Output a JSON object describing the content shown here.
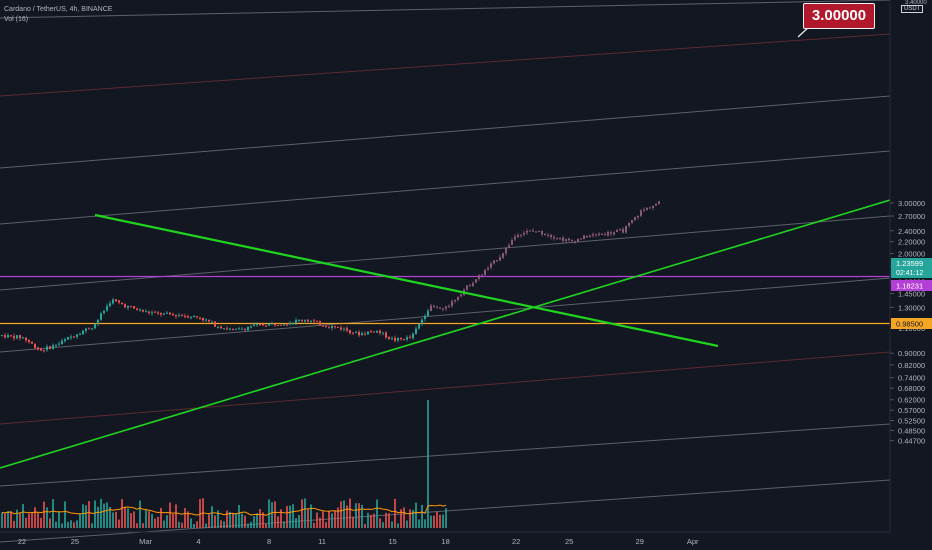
{
  "header": {
    "symbol_line": "Cardano / TetherUS, 4h, BINANCE",
    "indicator": "Vol (16)"
  },
  "callout": {
    "text": "3.00000"
  },
  "colors": {
    "background": "#131722",
    "candle": "#8c5a76",
    "candle_early_up": "#26a69a",
    "candle_early_down": "#ef5350",
    "channel_white": "#5d606b",
    "channel_red": "#5e2a30",
    "trendline": "#1fd51f",
    "magenta": "#b43fd6",
    "orange": "#f5a623",
    "vol_ma": "#ff9800"
  },
  "chart_data": {
    "type": "candlestick",
    "symbol": "Cardano / TetherUS",
    "timeframe": "4h",
    "exchange": "BINANCE",
    "price_axis": {
      "unit": "USDT",
      "scale": "log",
      "ticks": [
        "3.00000",
        "2.70000",
        "2.40000",
        "2.20000",
        "2.00000",
        "1.80000",
        "1.60000",
        "1.45000",
        "1.30000",
        "1.10000",
        "0.90000",
        "0.82000",
        "0.74000",
        "0.68000",
        "0.62000",
        "0.57000",
        "0.52500",
        "0.48500",
        "0.44700"
      ],
      "top_partial_tick": "3.40000"
    },
    "time_axis": {
      "ticks": [
        "22",
        "25",
        "Mar",
        "4",
        "8",
        "11",
        "15",
        "18",
        "22",
        "25",
        "29",
        "Apr"
      ]
    },
    "price_labels": [
      {
        "value": "1.23599",
        "sub": "02:41:12",
        "color": "#26a69a"
      },
      {
        "value": "1.18231",
        "color": "#b43fd6"
      },
      {
        "value": "0.98500",
        "color": "#f5a623"
      }
    ],
    "horizontal_levels": [
      {
        "value": 1.18231,
        "color": "#b43fd6"
      },
      {
        "value": 0.985,
        "color": "#f5a623"
      }
    ],
    "price_path": [
      [
        "Feb 20",
        1.05
      ],
      [
        "Feb 22",
        1.02
      ],
      [
        "Feb 23",
        0.92
      ],
      [
        "Feb 24",
        0.97
      ],
      [
        "Feb 25",
        1.05
      ],
      [
        "Feb 26",
        1.12
      ],
      [
        "Feb 27",
        1.38
      ],
      [
        "Feb 28",
        1.3
      ],
      [
        "Mar 1",
        1.25
      ],
      [
        "Mar 2",
        1.23
      ],
      [
        "Mar 3",
        1.22
      ],
      [
        "Mar 4",
        1.2
      ],
      [
        "Mar 5",
        1.12
      ],
      [
        "Mar 6",
        1.08
      ],
      [
        "Mar 7",
        1.12
      ],
      [
        "Mar 9",
        1.15
      ],
      [
        "Mar 10",
        1.18
      ],
      [
        "Mar 11",
        1.13
      ],
      [
        "Mar 12",
        1.1
      ],
      [
        "Mar 13",
        1.05
      ],
      [
        "Mar 14",
        1.08
      ],
      [
        "Mar 15",
        1.0
      ],
      [
        "Mar 16",
        1.02
      ],
      [
        "Mar 17",
        1.3
      ],
      [
        "Mar 18",
        1.3
      ],
      [
        "Mar 19",
        1.5
      ],
      [
        "Mar 20",
        1.7
      ],
      [
        "Mar 21",
        1.95
      ],
      [
        "Mar 22",
        2.35
      ],
      [
        "Mar 23",
        2.4
      ],
      [
        "Mar 24",
        2.3
      ],
      [
        "Mar 25",
        2.2
      ],
      [
        "Mar 26",
        2.3
      ],
      [
        "Mar 27",
        2.35
      ],
      [
        "Mar 28",
        2.4
      ],
      [
        "Mar 29",
        2.8
      ],
      [
        "Mar 30",
        3.0
      ]
    ],
    "volume": {
      "indicator": "Vol (16)",
      "spike": "Mar 17"
    },
    "annotations": [
      {
        "type": "callout",
        "text": "3.00000",
        "target_date": "Mar 30",
        "target_price": 3.0
      }
    ]
  }
}
